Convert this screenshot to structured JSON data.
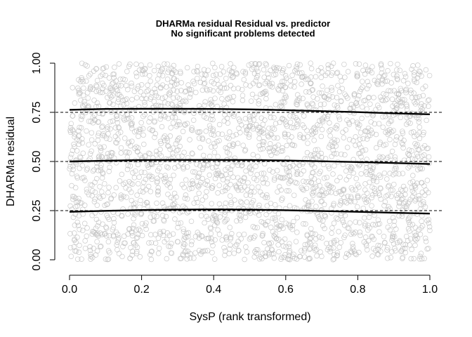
{
  "chart_data": {
    "type": "scatter",
    "title": "DHARMa residual Residual vs. predictor",
    "subtitle": "No significant problems detected",
    "xlabel": "SysP (rank transformed)",
    "ylabel": "DHARMa residual",
    "xlim": [
      0,
      1
    ],
    "ylim": [
      0,
      1
    ],
    "x_ticks": [
      "0.0",
      "0.2",
      "0.4",
      "0.6",
      "0.8",
      "1.0"
    ],
    "y_ticks": [
      "0.00",
      "0.25",
      "0.50",
      "0.75",
      "1.00"
    ],
    "reference_lines": [
      0.25,
      0.5,
      0.75
    ],
    "point_count": 2500,
    "point_color": "#bdbdbd",
    "quantile_series": [
      {
        "quantile": 0.75,
        "x": [
          0.0,
          0.1,
          0.2,
          0.3,
          0.4,
          0.5,
          0.6,
          0.7,
          0.8,
          0.9,
          1.0
        ],
        "y": [
          0.763,
          0.767,
          0.768,
          0.768,
          0.767,
          0.765,
          0.761,
          0.756,
          0.751,
          0.745,
          0.74
        ]
      },
      {
        "quantile": 0.5,
        "x": [
          0.0,
          0.1,
          0.2,
          0.3,
          0.4,
          0.5,
          0.6,
          0.7,
          0.8,
          0.9,
          1.0
        ],
        "y": [
          0.5,
          0.504,
          0.507,
          0.508,
          0.508,
          0.507,
          0.505,
          0.501,
          0.497,
          0.492,
          0.487
        ]
      },
      {
        "quantile": 0.25,
        "x": [
          0.0,
          0.1,
          0.2,
          0.3,
          0.4,
          0.5,
          0.6,
          0.7,
          0.8,
          0.9,
          1.0
        ],
        "y": [
          0.244,
          0.249,
          0.253,
          0.255,
          0.256,
          0.255,
          0.252,
          0.248,
          0.244,
          0.239,
          0.235
        ]
      }
    ],
    "grid": false,
    "legend": "none"
  }
}
